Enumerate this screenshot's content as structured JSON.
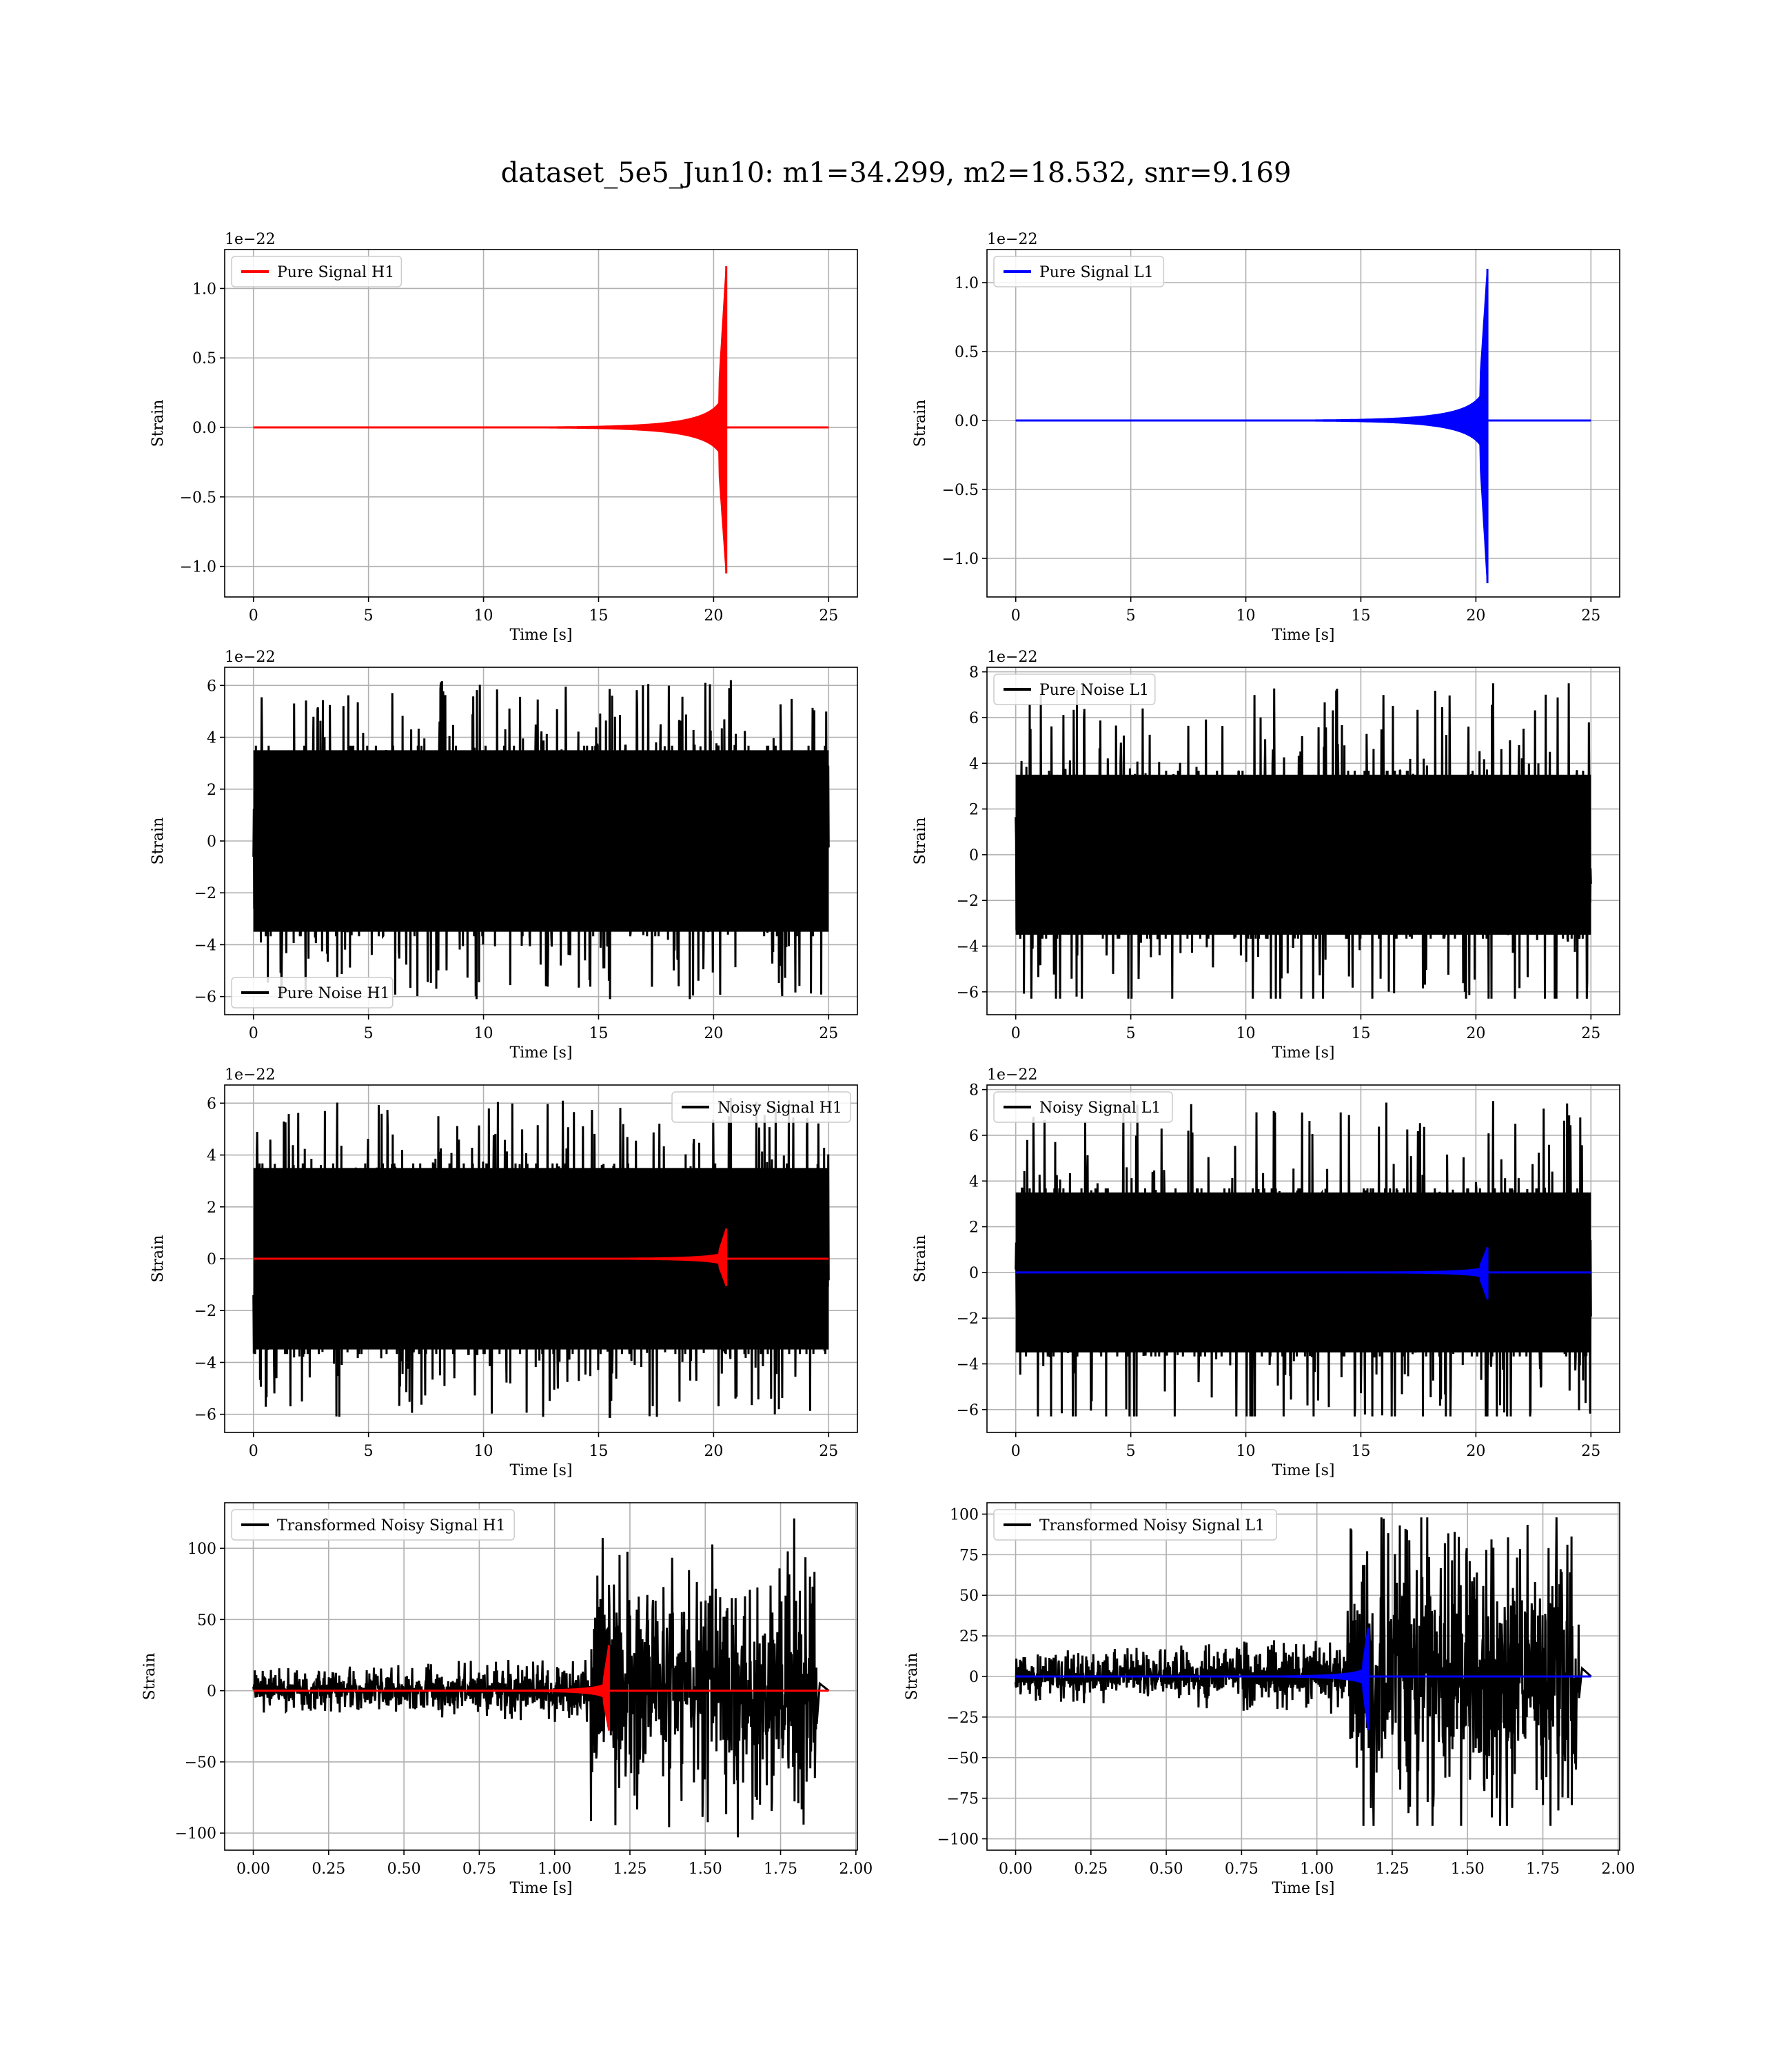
{
  "figure": {
    "title": "dataset_5e5_Jun10: m1=34.299, m2=18.532, snr=9.169"
  },
  "chart_data": [
    {
      "type": "line",
      "id": "pure-signal-h1",
      "legend_loc": "upper-left",
      "xlabel": "Time [s]",
      "ylabel": "Strain",
      "offset_text": "1e−22",
      "xlim": [
        -1.25,
        26.25
      ],
      "ylim": [
        -1.22,
        1.28
      ],
      "xticks": [
        0,
        5,
        10,
        15,
        20,
        25
      ],
      "xtick_labels": [
        "0",
        "5",
        "10",
        "15",
        "20",
        "25"
      ],
      "yticks": [
        -1.0,
        -0.5,
        0.0,
        0.5,
        1.0
      ],
      "ytick_labels": [
        "−1.0",
        "−0.5",
        "0.0",
        "0.5",
        "1.0"
      ],
      "grid": true,
      "series": [
        {
          "name": "Pure Signal H1",
          "color": "#ff0000",
          "kind": "chirp",
          "t0": 0,
          "t_merge": 20.55,
          "t_end": 25,
          "amp_pos": 1.16,
          "amp_neg": -1.05,
          "plateau": 0.33
        }
      ]
    },
    {
      "type": "line",
      "id": "pure-signal-l1",
      "legend_loc": "upper-left",
      "xlabel": "Time [s]",
      "ylabel": "Strain",
      "offset_text": "1e−22",
      "xlim": [
        -1.25,
        26.25
      ],
      "ylim": [
        -1.28,
        1.24
      ],
      "xticks": [
        0,
        5,
        10,
        15,
        20,
        25
      ],
      "xtick_labels": [
        "0",
        "5",
        "10",
        "15",
        "20",
        "25"
      ],
      "yticks": [
        -1.0,
        -0.5,
        0.0,
        0.5,
        1.0
      ],
      "ytick_labels": [
        "−1.0",
        "−0.5",
        "0.0",
        "0.5",
        "1.0"
      ],
      "grid": true,
      "series": [
        {
          "name": "Pure Signal L1",
          "color": "#0000ff",
          "kind": "chirp",
          "t0": 0,
          "t_merge": 20.5,
          "t_end": 25,
          "amp_pos": 1.1,
          "amp_neg": -1.18,
          "plateau": 0.33
        }
      ]
    },
    {
      "type": "line",
      "id": "pure-noise-h1",
      "legend_loc": "lower-left",
      "xlabel": "Time [s]",
      "ylabel": "Strain",
      "offset_text": "1e−22",
      "xlim": [
        -1.25,
        26.25
      ],
      "ylim": [
        -6.7,
        6.7
      ],
      "xticks": [
        0,
        5,
        10,
        15,
        20,
        25
      ],
      "xtick_labels": [
        "0",
        "5",
        "10",
        "15",
        "20",
        "25"
      ],
      "yticks": [
        -6,
        -4,
        -2,
        0,
        2,
        4,
        6
      ],
      "ytick_labels": [
        "−6",
        "−4",
        "−2",
        "0",
        "2",
        "4",
        "6"
      ],
      "grid": true,
      "series": [
        {
          "name": "Pure Noise H1",
          "color": "#000000",
          "kind": "noise",
          "t0": 0,
          "t_end": 25,
          "max": 6.2,
          "min": -6.1,
          "core": 3.5
        }
      ]
    },
    {
      "type": "line",
      "id": "pure-noise-l1",
      "legend_loc": "upper-left",
      "xlabel": "Time [s]",
      "ylabel": "Strain",
      "offset_text": "1e−22",
      "xlim": [
        -1.25,
        26.25
      ],
      "ylim": [
        -7.0,
        8.2
      ],
      "xticks": [
        0,
        5,
        10,
        15,
        20,
        25
      ],
      "xtick_labels": [
        "0",
        "5",
        "10",
        "15",
        "20",
        "25"
      ],
      "yticks": [
        -6,
        -4,
        -2,
        0,
        2,
        4,
        6,
        8
      ],
      "ytick_labels": [
        "−6",
        "−4",
        "−2",
        "0",
        "2",
        "4",
        "6",
        "8"
      ],
      "grid": true,
      "series": [
        {
          "name": "Pure Noise L1",
          "color": "#000000",
          "kind": "noise",
          "t0": 0,
          "t_end": 25,
          "max": 7.5,
          "min": -6.3,
          "core": 3.5
        }
      ]
    },
    {
      "type": "line",
      "id": "noisy-signal-h1",
      "legend_loc": "upper-right",
      "xlabel": "Time [s]",
      "ylabel": "Strain",
      "offset_text": "1e−22",
      "xlim": [
        -1.25,
        26.25
      ],
      "ylim": [
        -6.7,
        6.7
      ],
      "xticks": [
        0,
        5,
        10,
        15,
        20,
        25
      ],
      "xtick_labels": [
        "0",
        "5",
        "10",
        "15",
        "20",
        "25"
      ],
      "yticks": [
        -6,
        -4,
        -2,
        0,
        2,
        4,
        6
      ],
      "ytick_labels": [
        "−6",
        "−4",
        "−2",
        "0",
        "2",
        "4",
        "6"
      ],
      "grid": true,
      "series": [
        {
          "name": "Noisy Signal H1",
          "color": "#000000",
          "kind": "noise",
          "t0": 0,
          "t_end": 25,
          "max": 6.2,
          "min": -6.1,
          "core": 3.5
        },
        {
          "name": "",
          "color": "#ff0000",
          "kind": "chirp",
          "t0": 0,
          "t_merge": 20.55,
          "t_end": 25,
          "amp_pos": 1.16,
          "amp_neg": -1.05,
          "plateau": 0.33
        }
      ]
    },
    {
      "type": "line",
      "id": "noisy-signal-l1",
      "legend_loc": "upper-left",
      "xlabel": "Time [s]",
      "ylabel": "Strain",
      "offset_text": "1e−22",
      "xlim": [
        -1.25,
        26.25
      ],
      "ylim": [
        -7.0,
        8.2
      ],
      "xticks": [
        0,
        5,
        10,
        15,
        20,
        25
      ],
      "xtick_labels": [
        "0",
        "5",
        "10",
        "15",
        "20",
        "25"
      ],
      "yticks": [
        -6,
        -4,
        -2,
        0,
        2,
        4,
        6,
        8
      ],
      "ytick_labels": [
        "−6",
        "−4",
        "−2",
        "0",
        "2",
        "4",
        "6",
        "8"
      ],
      "grid": true,
      "series": [
        {
          "name": "Noisy Signal L1",
          "color": "#000000",
          "kind": "noise",
          "t0": 0,
          "t_end": 25,
          "max": 7.5,
          "min": -6.3,
          "core": 3.5
        },
        {
          "name": "",
          "color": "#0000ff",
          "kind": "chirp",
          "t0": 0,
          "t_merge": 20.5,
          "t_end": 25,
          "amp_pos": 1.1,
          "amp_neg": -1.18,
          "plateau": 0.33
        }
      ]
    },
    {
      "type": "line",
      "id": "transformed-noisy-signal-h1",
      "legend_loc": "upper-left",
      "xlabel": "Time [s]",
      "ylabel": "Strain",
      "offset_text": "",
      "xlim": [
        -0.095,
        2.005
      ],
      "ylim": [
        -112,
        132
      ],
      "xticks": [
        0.0,
        0.25,
        0.5,
        0.75,
        1.0,
        1.25,
        1.5,
        1.75,
        2.0
      ],
      "xtick_labels": [
        "0.00",
        "0.25",
        "0.50",
        "0.75",
        "1.00",
        "1.25",
        "1.50",
        "1.75",
        "2.00"
      ],
      "yticks": [
        -100,
        -50,
        0,
        50,
        100
      ],
      "ytick_labels": [
        "−100",
        "−50",
        "0",
        "50",
        "100"
      ],
      "grid": true,
      "series": [
        {
          "name": "Transformed Noisy Signal H1",
          "color": "#000000",
          "kind": "transformed",
          "t0": 0,
          "t_end": 1.87,
          "t_jump": 1.12,
          "early": 8,
          "late": 55,
          "max": 121,
          "min": -103,
          "tail_end": 1.91
        },
        {
          "name": "",
          "color": "#ff0000",
          "kind": "chirp",
          "t0": 0,
          "t_merge": 1.18,
          "t_end": 1.91,
          "amp_pos": 32,
          "amp_neg": -28,
          "plateau": 8
        }
      ]
    },
    {
      "type": "line",
      "id": "transformed-noisy-signal-l1",
      "legend_loc": "upper-left",
      "xlabel": "Time [s]",
      "ylabel": "Strain",
      "offset_text": "",
      "xlim": [
        -0.095,
        2.005
      ],
      "ylim": [
        -107,
        107
      ],
      "xticks": [
        0.0,
        0.25,
        0.5,
        0.75,
        1.0,
        1.25,
        1.5,
        1.75,
        2.0
      ],
      "xtick_labels": [
        "0.00",
        "0.25",
        "0.50",
        "0.75",
        "1.00",
        "1.25",
        "1.50",
        "1.75",
        "2.00"
      ],
      "yticks": [
        -100,
        -75,
        -50,
        -25,
        0,
        25,
        50,
        75,
        100
      ],
      "ytick_labels": [
        "−100",
        "−75",
        "−50",
        "−25",
        "0",
        "25",
        "50",
        "75",
        "100"
      ],
      "grid": true,
      "series": [
        {
          "name": "Transformed Noisy Signal L1",
          "color": "#000000",
          "kind": "transformed",
          "t0": 0,
          "t_end": 1.87,
          "t_jump": 1.1,
          "early": 8,
          "late": 55,
          "max": 98,
          "min": -92,
          "tail_end": 1.91
        },
        {
          "name": "",
          "color": "#0000ff",
          "kind": "chirp",
          "t0": 0,
          "t_merge": 1.17,
          "t_end": 1.91,
          "amp_pos": 30,
          "amp_neg": -33,
          "plateau": 8
        }
      ]
    }
  ]
}
